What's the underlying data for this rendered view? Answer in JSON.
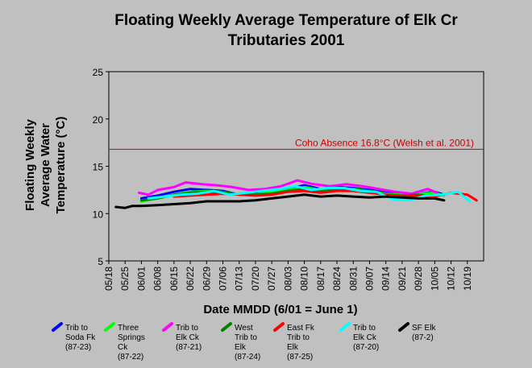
{
  "chart_data": {
    "type": "line",
    "title_lines": [
      "Floating Weekly Average Temperature of Elk Cr",
      "Tributaries 2001"
    ],
    "ylabel_lines": [
      "Floating Weekly",
      "Average Water",
      "Temperature (°C)"
    ],
    "xlabel": "Date MMDD (6/01 = June 1)",
    "ylim": [
      5,
      25
    ],
    "y_ticks": [
      "5",
      "10",
      "15",
      "20",
      "25"
    ],
    "x_range_days": [
      0,
      161
    ],
    "x_ticks": [
      "05/18",
      "05/25",
      "06/01",
      "06/08",
      "06/15",
      "06/22",
      "06/29",
      "07/06",
      "07/13",
      "07/20",
      "07/27",
      "08/03",
      "08/10",
      "08/17",
      "08/24",
      "08/31",
      "09/07",
      "09/14",
      "09/21",
      "09/28",
      "10/05",
      "10/12",
      "10/19"
    ],
    "grid": false,
    "reference_line": {
      "value": 16.8,
      "label": "Coho Absence 16.8°C (Welsh et al. 2001)",
      "color": "#cc0000"
    },
    "series": [
      {
        "name": "Trib to Soda Fk (87-23)",
        "color": "#0000ff",
        "x": [
          "06/01",
          "06/08",
          "06/15",
          "06/22",
          "06/29",
          "07/06",
          "07/13",
          "07/20",
          "07/27",
          "08/03",
          "08/10",
          "08/17",
          "08/24",
          "08/31",
          "09/07",
          "09/14",
          "09/21",
          "09/28",
          "10/05",
          "10/09"
        ],
        "y": [
          11.6,
          11.9,
          12.3,
          12.6,
          12.5,
          12.4,
          12.0,
          12.1,
          12.4,
          12.6,
          13.0,
          12.6,
          12.8,
          12.7,
          12.5,
          12.2,
          12.0,
          12.1,
          12.3,
          12.0
        ]
      },
      {
        "name": "Three Springs Ck (87-22)",
        "color": "#00ff00",
        "x": [
          "06/01",
          "06/08",
          "06/15",
          "06/22",
          "06/29",
          "07/06",
          "07/13",
          "07/20",
          "07/27",
          "08/03",
          "08/10",
          "08/17",
          "08/24",
          "08/31",
          "09/07",
          "09/14",
          "09/21",
          "09/28",
          "10/05",
          "10/09"
        ],
        "y": [
          11.3,
          11.6,
          12.0,
          12.3,
          12.4,
          12.3,
          12.0,
          12.0,
          12.3,
          12.5,
          12.8,
          12.5,
          12.6,
          12.6,
          12.4,
          12.1,
          12.0,
          12.1,
          12.2,
          11.9
        ]
      },
      {
        "name": "Trib to Elk Ck (87-21)",
        "color": "#ff00ff",
        "x": [
          "05/31",
          "06/04",
          "06/08",
          "06/15",
          "06/20",
          "06/27",
          "07/03",
          "07/10",
          "07/17",
          "07/24",
          "07/31",
          "08/07",
          "08/14",
          "08/21",
          "08/28",
          "09/04",
          "09/11",
          "09/18",
          "09/25",
          "10/02",
          "10/06"
        ],
        "y": [
          12.2,
          12.0,
          12.5,
          12.8,
          13.3,
          13.1,
          13.0,
          12.8,
          12.5,
          12.6,
          12.9,
          13.5,
          13.1,
          12.9,
          13.1,
          12.9,
          12.6,
          12.3,
          12.1,
          12.6,
          12.2
        ]
      },
      {
        "name": "West Trib to Elk (87-24)",
        "color": "#008000",
        "x": [
          "06/01",
          "06/08",
          "06/15",
          "06/22",
          "06/29",
          "07/06",
          "07/13",
          "07/20",
          "07/27",
          "08/03",
          "08/10",
          "08/17",
          "08/24",
          "08/31",
          "09/07",
          "09/14",
          "09/21",
          "09/28",
          "10/05"
        ],
        "y": [
          11.4,
          11.6,
          12.0,
          12.2,
          12.3,
          12.3,
          12.0,
          12.0,
          12.1,
          12.4,
          12.6,
          12.4,
          12.5,
          12.5,
          12.4,
          12.0,
          11.9,
          12.0,
          11.8
        ]
      },
      {
        "name": "East Fk Trib to Elk (87-25)",
        "color": "#ff0000",
        "x": [
          "06/15",
          "06/22",
          "06/29",
          "07/06",
          "07/13",
          "07/20",
          "07/27",
          "08/03",
          "08/10",
          "08/17",
          "08/24",
          "08/31",
          "09/07",
          "09/14",
          "09/21",
          "09/28",
          "10/05",
          "10/12",
          "10/19",
          "10/23"
        ],
        "y": [
          11.8,
          11.9,
          12.0,
          12.1,
          12.0,
          11.9,
          12.0,
          12.3,
          12.4,
          12.2,
          12.4,
          12.4,
          12.2,
          12.0,
          11.8,
          11.9,
          11.8,
          12.2,
          12.0,
          11.4
        ]
      },
      {
        "name": "Trib to Elk Ck (87-20)",
        "color": "#00ffff",
        "x": [
          "06/04",
          "06/11",
          "06/18",
          "06/25",
          "07/02",
          "07/09",
          "07/16",
          "07/23",
          "07/30",
          "08/06",
          "08/13",
          "08/20",
          "08/27",
          "09/03",
          "09/10",
          "09/17",
          "09/24",
          "10/01",
          "10/08",
          "10/15",
          "10/20"
        ],
        "y": [
          11.6,
          11.8,
          12.0,
          12.1,
          12.4,
          12.0,
          12.2,
          12.4,
          12.6,
          12.9,
          12.5,
          12.7,
          12.7,
          12.4,
          12.3,
          11.5,
          11.4,
          11.9,
          12.0,
          12.3,
          11.3
        ]
      },
      {
        "name": "SF Elk (87-2)",
        "color": "#000000",
        "x": [
          "05/21",
          "05/25",
          "05/28",
          "06/01",
          "06/08",
          "06/15",
          "06/22",
          "06/29",
          "07/06",
          "07/13",
          "07/20",
          "07/27",
          "08/03",
          "08/10",
          "08/17",
          "08/24",
          "08/31",
          "09/07",
          "09/14",
          "09/21",
          "09/28",
          "10/05",
          "10/09"
        ],
        "y": [
          10.7,
          10.6,
          10.8,
          10.8,
          10.9,
          11.0,
          11.1,
          11.3,
          11.3,
          11.3,
          11.4,
          11.6,
          11.8,
          12.0,
          11.8,
          11.9,
          11.8,
          11.7,
          11.8,
          11.7,
          11.6,
          11.6,
          11.4
        ]
      }
    ]
  }
}
